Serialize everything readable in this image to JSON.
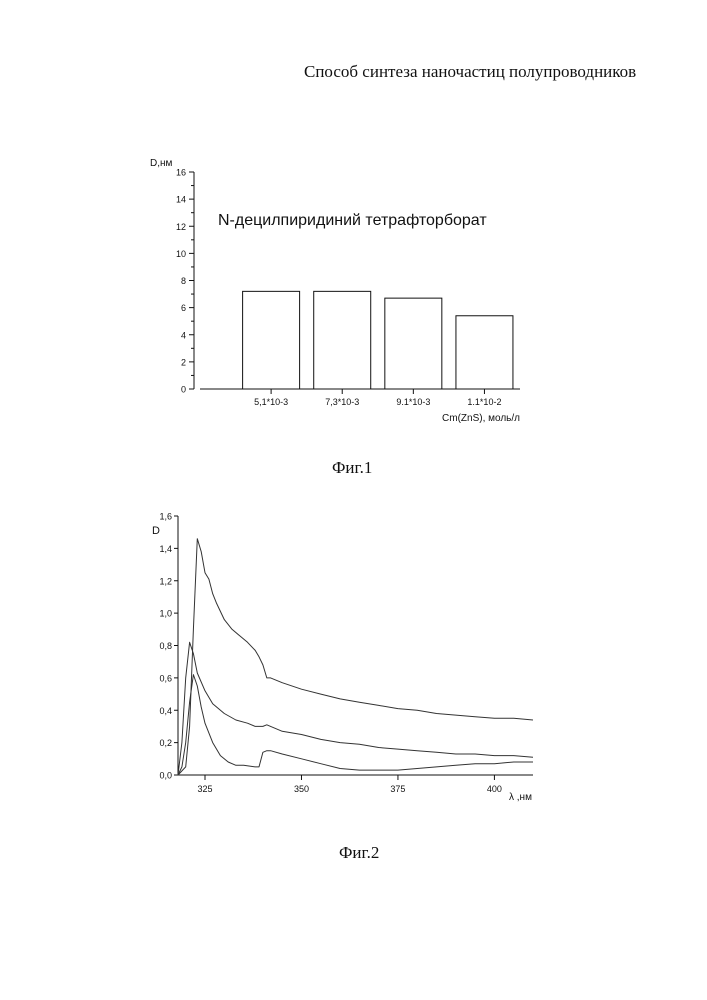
{
  "document": {
    "header": "Способ синтеза наночастиц полупроводников",
    "captions": [
      "Фиг.1",
      "Фиг.2"
    ]
  },
  "chart_data": [
    {
      "type": "bar",
      "title": "N-децилпиридиний тетрафторборат",
      "ylabel": "D,нм",
      "xlabel": "Cm(ZnS), моль/л",
      "categories": [
        "5,1*10-3",
        "7,3*10-3",
        "9.1*10-3",
        "1.1*10-2"
      ],
      "values": [
        7.2,
        7.2,
        6.7,
        5.4
      ],
      "ylim": [
        0,
        16
      ],
      "yticks": [
        "0",
        "2",
        "4",
        "6",
        "8",
        "10",
        "12",
        "14",
        "16"
      ],
      "grid": false,
      "bar_color": "#ffffff",
      "edge_color": "#111111"
    },
    {
      "type": "line",
      "ylabel": "D",
      "xlabel": "λ ,нм",
      "xlim": [
        318,
        410
      ],
      "ylim": [
        0,
        1.6
      ],
      "xticks": [
        "325",
        "350",
        "375",
        "400"
      ],
      "yticks": [
        "0,0",
        "0,2",
        "0,4",
        "0,6",
        "0,8",
        "1,0",
        "1,2",
        "1,4",
        "1,6"
      ],
      "grid": false,
      "line_color": "#333333",
      "series": [
        {
          "x": [
            318,
            320,
            321,
            322,
            323,
            324,
            325,
            326,
            327,
            328,
            330,
            332,
            334,
            336,
            338,
            339,
            340,
            341,
            342,
            345,
            350,
            355,
            360,
            365,
            370,
            375,
            380,
            385,
            390,
            395,
            400,
            405,
            410
          ],
          "y": [
            0,
            0.05,
            0.3,
            0.9,
            1.46,
            1.38,
            1.25,
            1.21,
            1.12,
            1.06,
            0.96,
            0.9,
            0.86,
            0.82,
            0.77,
            0.73,
            0.68,
            0.6,
            0.6,
            0.57,
            0.53,
            0.5,
            0.47,
            0.45,
            0.43,
            0.41,
            0.4,
            0.38,
            0.37,
            0.36,
            0.35,
            0.35,
            0.34
          ]
        },
        {
          "x": [
            318,
            319,
            320,
            321,
            322,
            323,
            325,
            327,
            330,
            333,
            336,
            338,
            340,
            341,
            343,
            345,
            350,
            355,
            360,
            365,
            370,
            375,
            380,
            385,
            390,
            395,
            400,
            405,
            410
          ],
          "y": [
            0,
            0.2,
            0.6,
            0.82,
            0.75,
            0.63,
            0.52,
            0.44,
            0.38,
            0.34,
            0.32,
            0.3,
            0.3,
            0.31,
            0.29,
            0.27,
            0.25,
            0.22,
            0.2,
            0.19,
            0.17,
            0.16,
            0.15,
            0.14,
            0.13,
            0.13,
            0.12,
            0.12,
            0.11
          ]
        },
        {
          "x": [
            318,
            319,
            320,
            321,
            322,
            323,
            324,
            325,
            327,
            329,
            331,
            333,
            335,
            338,
            339,
            340,
            341,
            342,
            345,
            350,
            355,
            360,
            365,
            370,
            375,
            380,
            385,
            390,
            395,
            400,
            405,
            410
          ],
          "y": [
            0,
            0.05,
            0.2,
            0.45,
            0.62,
            0.55,
            0.42,
            0.32,
            0.2,
            0.12,
            0.08,
            0.06,
            0.06,
            0.05,
            0.05,
            0.14,
            0.15,
            0.15,
            0.13,
            0.1,
            0.07,
            0.04,
            0.03,
            0.03,
            0.03,
            0.04,
            0.05,
            0.06,
            0.07,
            0.07,
            0.08,
            0.08
          ]
        }
      ]
    }
  ]
}
